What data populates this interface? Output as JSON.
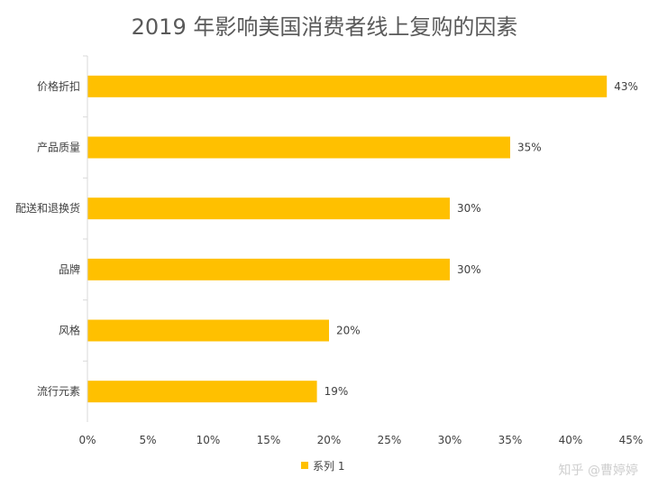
{
  "chart_data": {
    "type": "bar",
    "orientation": "horizontal",
    "title": "2019 年影响美国消费者线上复购的因素",
    "xlabel": "",
    "ylabel": "",
    "categories": [
      "价格折扣",
      "产品质量",
      "配送和退换货",
      "品牌",
      "风格",
      "流行元素"
    ],
    "series": [
      {
        "name": "系列 1",
        "color": "#FFC000",
        "values": [
          0.43,
          0.35,
          0.3,
          0.3,
          0.2,
          0.19
        ],
        "data_labels": [
          "43%",
          "35%",
          "30%",
          "30%",
          "20%",
          "19%"
        ]
      }
    ],
    "xlim": [
      0,
      0.45
    ],
    "x_ticks": [
      0,
      0.05,
      0.1,
      0.15,
      0.2,
      0.25,
      0.3,
      0.35,
      0.4,
      0.45
    ],
    "x_tick_labels": [
      "0%",
      "5%",
      "10%",
      "15%",
      "20%",
      "25%",
      "30%",
      "35%",
      "40%",
      "45%"
    ],
    "grid": false,
    "legend_position": "bottom"
  },
  "watermark": "知乎 @曹婷婷"
}
